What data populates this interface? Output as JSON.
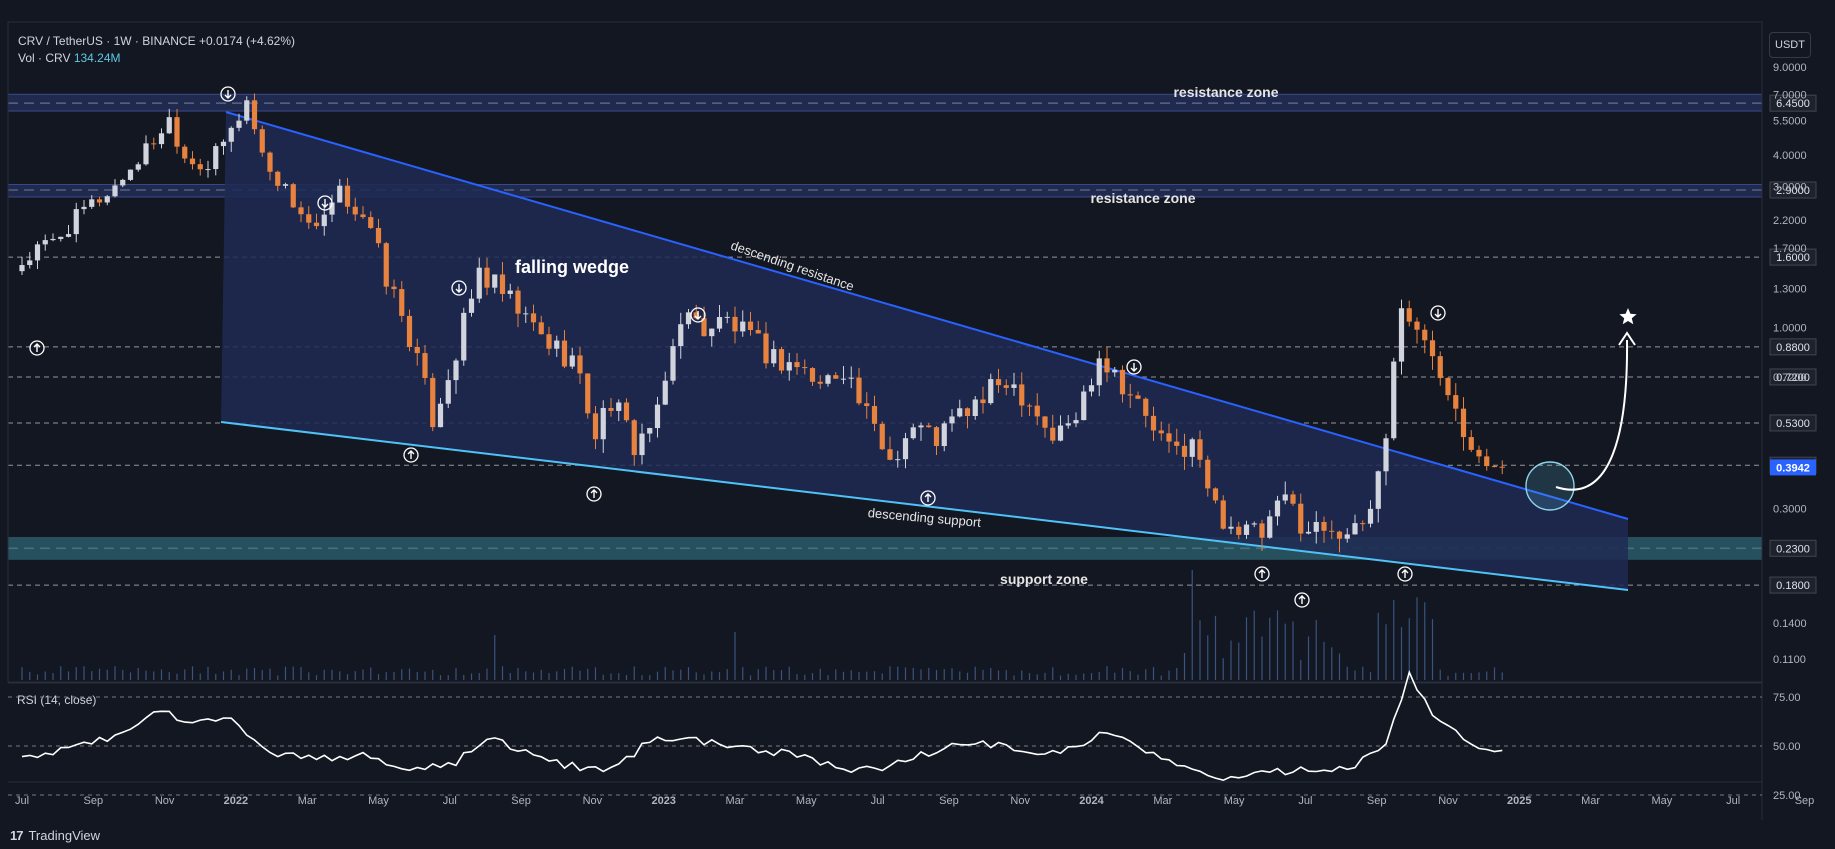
{
  "header": {
    "symbol": "CRV / TetherUS · 1W · BINANCE",
    "change": "+0.0174 (+4.62%)",
    "vol_label": "Vol · CRV",
    "vol_value": "134.24M",
    "unit": "USDT"
  },
  "rsi_label": "RSI (14, close)",
  "footer_brand": "TradingView",
  "annotations": {
    "resistance_zone_top": "resistance zone",
    "resistance_zone_mid": "resistance zone",
    "support_zone": "support zone",
    "falling_wedge": "falling wedge",
    "descending_resistance": "descending resistance",
    "descending_support": "descending support"
  },
  "colors": {
    "background": "#131722",
    "bull": "#d1d4dc",
    "bear": "#e8823f",
    "wedge_fill": "#1e2a52",
    "resistance_line": "#2962ff",
    "support_line": "#4fc3f7",
    "zone_fill": "#26325e",
    "support_zone_fill": "#2c5a68",
    "price_tag": "#2962ff"
  },
  "chart_data": {
    "type": "candlestick",
    "interval": "1W",
    "yscale": "log",
    "x_labels": [
      "Jul",
      "Sep",
      "Nov",
      "2022",
      "Mar",
      "May",
      "Jul",
      "Sep",
      "Nov",
      "2023",
      "Mar",
      "May",
      "Jul",
      "Sep",
      "Nov",
      "2024",
      "Mar",
      "May",
      "Jul",
      "Sep",
      "Nov",
      "2025",
      "Mar",
      "May",
      "Jul",
      "Sep"
    ],
    "x_bold": [
      "2022",
      "2023",
      "2024",
      "2025"
    ],
    "y_ticks": [
      "9.0000",
      "7.0000",
      "5.5000",
      "4.0000",
      "3.0000",
      "2.2000",
      "1.7000",
      "1.3000",
      "1.0000",
      "0.7200",
      "0.4000",
      "0.3000",
      "0.1400",
      "0.1100"
    ],
    "price_levels": [
      "6.4500",
      "2.9000",
      "1.6000",
      "0.8800",
      "0.7200",
      "0.5300",
      "0.4000",
      "0.2300",
      "0.1800"
    ],
    "current_price": "0.3942",
    "rsi_ticks": [
      "75.00",
      "50.00",
      "25.00"
    ],
    "anchors": [
      [
        0,
        1.55
      ],
      [
        4,
        1.8
      ],
      [
        8,
        2.4
      ],
      [
        12,
        3.0
      ],
      [
        16,
        4.2
      ],
      [
        19,
        5.6
      ],
      [
        21,
        4.0
      ],
      [
        24,
        3.6
      ],
      [
        27,
        5.0
      ],
      [
        29,
        6.6
      ],
      [
        31,
        4.0
      ],
      [
        35,
        2.6
      ],
      [
        38,
        1.95
      ],
      [
        41,
        2.8
      ],
      [
        44,
        2.3
      ],
      [
        47,
        1.4
      ],
      [
        50,
        0.95
      ],
      [
        53,
        0.55
      ],
      [
        56,
        0.85
      ],
      [
        59,
        1.45
      ],
      [
        62,
        1.25
      ],
      [
        65,
        1.05
      ],
      [
        68,
        0.9
      ],
      [
        71,
        0.82
      ],
      [
        74,
        0.5
      ],
      [
        76,
        0.62
      ],
      [
        79,
        0.46
      ],
      [
        82,
        0.55
      ],
      [
        85,
        1.1
      ],
      [
        88,
        1.0
      ],
      [
        91,
        1.05
      ],
      [
        94,
        0.92
      ],
      [
        97,
        0.82
      ],
      [
        100,
        0.78
      ],
      [
        103,
        0.68
      ],
      [
        106,
        0.78
      ],
      [
        109,
        0.55
      ],
      [
        112,
        0.42
      ],
      [
        115,
        0.52
      ],
      [
        118,
        0.48
      ],
      [
        121,
        0.56
      ],
      [
        124,
        0.62
      ],
      [
        127,
        0.72
      ],
      [
        130,
        0.62
      ],
      [
        133,
        0.48
      ],
      [
        136,
        0.55
      ],
      [
        139,
        0.85
      ],
      [
        142,
        0.7
      ],
      [
        145,
        0.55
      ],
      [
        148,
        0.44
      ],
      [
        151,
        0.46
      ],
      [
        154,
        0.3
      ],
      [
        157,
        0.26
      ],
      [
        160,
        0.25
      ],
      [
        163,
        0.32
      ],
      [
        166,
        0.26
      ],
      [
        169,
        0.27
      ],
      [
        172,
        0.25
      ],
      [
        174,
        0.3
      ],
      [
        176,
        0.5
      ],
      [
        178,
        1.2
      ],
      [
        180,
        0.95
      ],
      [
        182,
        0.85
      ],
      [
        184,
        0.7
      ],
      [
        186,
        0.52
      ],
      [
        188,
        0.45
      ],
      [
        190,
        0.39
      ],
      [
        191,
        0.3942
      ]
    ],
    "rsi_anchors": [
      [
        0,
        43
      ],
      [
        8,
        50
      ],
      [
        14,
        58
      ],
      [
        18,
        68
      ],
      [
        22,
        60
      ],
      [
        26,
        66
      ],
      [
        29,
        55
      ],
      [
        32,
        47
      ],
      [
        38,
        44
      ],
      [
        44,
        45
      ],
      [
        50,
        38
      ],
      [
        56,
        42
      ],
      [
        60,
        54
      ],
      [
        64,
        48
      ],
      [
        70,
        40
      ],
      [
        76,
        38
      ],
      [
        82,
        55
      ],
      [
        88,
        52
      ],
      [
        94,
        48
      ],
      [
        100,
        46
      ],
      [
        106,
        37
      ],
      [
        112,
        40
      ],
      [
        118,
        48
      ],
      [
        124,
        52
      ],
      [
        130,
        46
      ],
      [
        136,
        49
      ],
      [
        140,
        58
      ],
      [
        144,
        48
      ],
      [
        148,
        44
      ],
      [
        154,
        32
      ],
      [
        160,
        36
      ],
      [
        166,
        38
      ],
      [
        172,
        40
      ],
      [
        176,
        52
      ],
      [
        179,
        87
      ],
      [
        182,
        65
      ],
      [
        186,
        55
      ],
      [
        188,
        48
      ],
      [
        191,
        47
      ]
    ]
  }
}
